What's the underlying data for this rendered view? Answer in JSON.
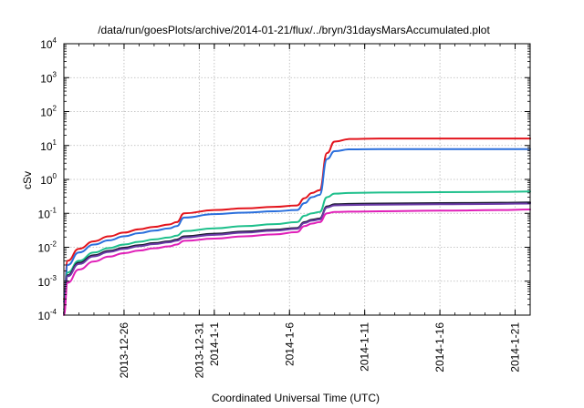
{
  "chart_data": {
    "type": "line",
    "title": "/data/run/goesPlots/archive/2014-01-21/flux/../bryn/31daysMarsAccumulated.plot",
    "xlabel": "Coordinated Universal Time (UTC)",
    "ylabel": "cSv",
    "yscale": "log",
    "ylim": [
      0.0001,
      10000
    ],
    "xlim": [
      "2013-12-22",
      "2014-01-22"
    ],
    "grid": true,
    "y_ticks": [
      {
        "base": "10",
        "exp": "-4"
      },
      {
        "base": "10",
        "exp": "-3"
      },
      {
        "base": "10",
        "exp": "-2"
      },
      {
        "base": "10",
        "exp": "-1"
      },
      {
        "base": "10",
        "exp": "0"
      },
      {
        "base": "10",
        "exp": "1"
      },
      {
        "base": "10",
        "exp": "2"
      },
      {
        "base": "10",
        "exp": "3"
      },
      {
        "base": "10",
        "exp": "4"
      }
    ],
    "x_ticks": [
      {
        "date": "2013-12-26",
        "label": "2013-12-26"
      },
      {
        "date": "2013-12-31",
        "label": "2013-12-31"
      },
      {
        "date": "2014-01-01",
        "label": "2014-1-1"
      },
      {
        "date": "2014-01-06",
        "label": "2014-1-6"
      },
      {
        "date": "2014-01-11",
        "label": "2014-1-11"
      },
      {
        "date": "2014-01-16",
        "label": "2014-1-16"
      },
      {
        "date": "2014-01-21",
        "label": "2014-1-21"
      }
    ],
    "x": [
      "2013-12-22T00:00",
      "2013-12-22T06:00",
      "2013-12-23T00:00",
      "2013-12-24T00:00",
      "2013-12-25T00:00",
      "2013-12-26T00:00",
      "2013-12-27T00:00",
      "2013-12-28T00:00",
      "2013-12-29T00:00",
      "2013-12-29T12:00",
      "2013-12-30T00:00",
      "2014-01-01T00:00",
      "2014-01-03T00:00",
      "2014-01-05T00:00",
      "2014-01-06T12:00",
      "2014-01-07T00:00",
      "2014-01-07T12:00",
      "2014-01-08T00:00",
      "2014-01-08T12:00",
      "2014-01-09T00:00",
      "2014-01-10T00:00",
      "2014-01-12T00:00",
      "2014-01-16T00:00",
      "2014-01-20T00:00",
      "2014-01-22T00:00"
    ],
    "series": [
      {
        "color": "#e3141c",
        "values": [
          0.0003,
          0.004,
          0.009,
          0.015,
          0.021,
          0.027,
          0.034,
          0.04,
          0.047,
          0.055,
          0.1,
          0.125,
          0.14,
          0.155,
          0.17,
          0.28,
          0.4,
          0.48,
          6.0,
          13.0,
          15.5,
          16.0,
          16.0,
          16.0,
          16.0
        ]
      },
      {
        "color": "#2a6fdc",
        "values": [
          0.00025,
          0.003,
          0.007,
          0.012,
          0.016,
          0.021,
          0.026,
          0.031,
          0.036,
          0.042,
          0.075,
          0.095,
          0.105,
          0.115,
          0.125,
          0.2,
          0.3,
          0.35,
          4.0,
          6.8,
          7.7,
          7.8,
          7.8,
          7.8,
          7.8
        ]
      },
      {
        "color": "#1fc08c",
        "values": [
          0.00015,
          0.0018,
          0.004,
          0.007,
          0.0095,
          0.012,
          0.0145,
          0.017,
          0.0195,
          0.022,
          0.03,
          0.036,
          0.042,
          0.048,
          0.055,
          0.085,
          0.1,
          0.11,
          0.3,
          0.38,
          0.4,
          0.41,
          0.42,
          0.43,
          0.44
        ]
      },
      {
        "color": "#1a1a2e",
        "values": [
          0.00012,
          0.0015,
          0.0035,
          0.0058,
          0.0078,
          0.0097,
          0.0115,
          0.0133,
          0.015,
          0.0168,
          0.021,
          0.025,
          0.029,
          0.033,
          0.037,
          0.055,
          0.065,
          0.07,
          0.16,
          0.185,
          0.19,
          0.195,
          0.2,
          0.205,
          0.21
        ]
      },
      {
        "color": "#6a3aa6",
        "values": [
          0.00011,
          0.0014,
          0.0032,
          0.0054,
          0.0073,
          0.009,
          0.0107,
          0.0124,
          0.014,
          0.0157,
          0.0195,
          0.0233,
          0.027,
          0.031,
          0.035,
          0.052,
          0.061,
          0.066,
          0.15,
          0.172,
          0.176,
          0.18,
          0.185,
          0.19,
          0.195
        ]
      },
      {
        "color": "#e020b8",
        "values": [
          0.0001,
          0.0009,
          0.0022,
          0.0038,
          0.0053,
          0.0067,
          0.008,
          0.0093,
          0.0106,
          0.012,
          0.0155,
          0.018,
          0.021,
          0.024,
          0.028,
          0.042,
          0.05,
          0.055,
          0.1,
          0.11,
          0.112,
          0.115,
          0.12,
          0.125,
          0.13
        ]
      }
    ]
  }
}
